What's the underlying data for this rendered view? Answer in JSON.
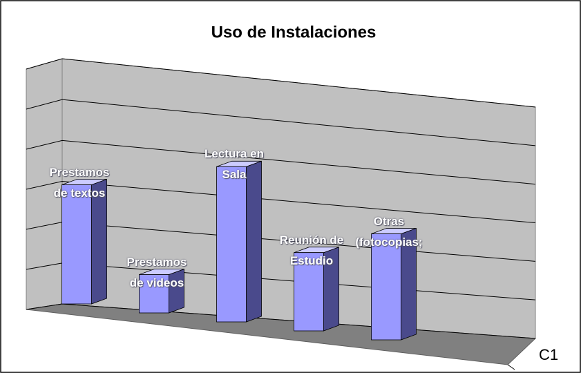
{
  "chart_data": {
    "type": "bar3d",
    "title": "Uso de Instalaciones",
    "categories": [
      "Prestamos de textos",
      "Prestamos de videos",
      "Lectura en Sala",
      "Reunión de Estudio",
      "Otras (fotocopias;"
    ],
    "series": [
      {
        "name": "C1",
        "color": "#9999ff",
        "values": [
          3.0,
          1.0,
          4.2,
          2.2,
          3.1
        ]
      }
    ],
    "ylim": [
      0,
      6
    ],
    "yticks": [
      0,
      1,
      2,
      3,
      4,
      5,
      6
    ],
    "grid": true
  }
}
